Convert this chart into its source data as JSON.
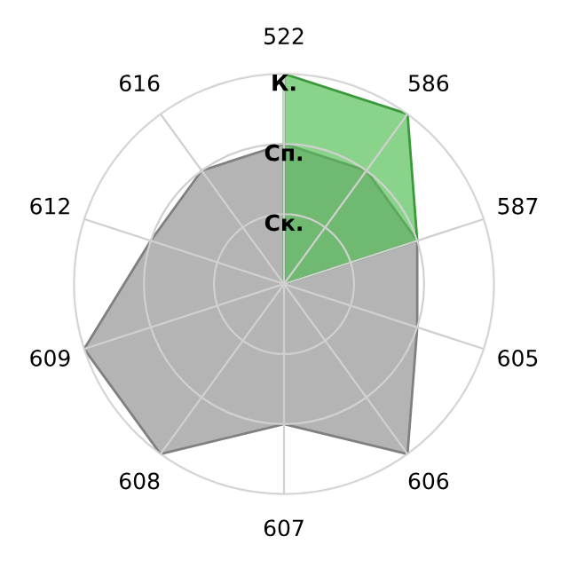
{
  "chart_data": {
    "type": "radar",
    "categories": [
      "522",
      "586",
      "587",
      "605",
      "606",
      "607",
      "608",
      "609",
      "612",
      "616"
    ],
    "series": [
      {
        "color": "#b4b4b4",
        "values": [
          2,
          2,
          2,
          2,
          3,
          2,
          3,
          3,
          2,
          2
        ]
      },
      {
        "color": "#4cbb4c",
        "values": [
          3,
          3,
          2,
          0,
          0,
          0,
          0,
          0,
          0,
          0
        ]
      }
    ],
    "ylim": [
      0,
      3
    ],
    "yticks": [
      {
        "value": 1,
        "label": "Ск."
      },
      {
        "value": 2,
        "label": "Сп."
      },
      {
        "value": 3,
        "label": "К."
      }
    ],
    "grid": true
  }
}
